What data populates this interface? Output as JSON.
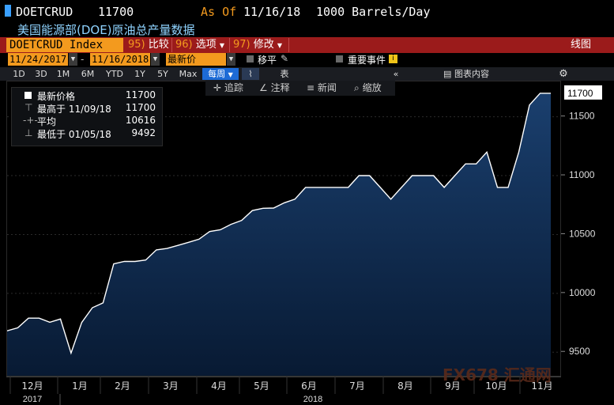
{
  "header": {
    "ticker": "DOETCRUD",
    "last_value": "11700",
    "as_of_label": "As Of",
    "as_of_date": "11/16/18",
    "units": "1000 Barrels/Day",
    "subtitle": "美国能源部(DOE)原油总产量数据"
  },
  "toolbar": {
    "security": "DOETCRUD Index",
    "compare_num": "95)",
    "compare": "比较",
    "options_num": "96)",
    "options": "选项",
    "modify_num": "97)",
    "modify": "修改",
    "chart_label": "线图"
  },
  "daterow": {
    "start": "11/24/2017",
    "end": "11/16/2018",
    "price_field": "最新价",
    "pan": "移平",
    "events": "重要事件"
  },
  "ranges": [
    "1D",
    "3D",
    "1M",
    "6M",
    "YTD",
    "1Y",
    "5Y",
    "Max"
  ],
  "frequency": "每周",
  "chart_type_button": "表",
  "chart_contents": "图表内容",
  "tools": {
    "track": "追踪",
    "annotate": "注释",
    "news": "新闻",
    "zoom": "缩放"
  },
  "legend": {
    "latest_label": "最新价格",
    "latest_value": "11700",
    "high_label": "最高于 11/09/18",
    "high_value": "11700",
    "avg_label": "平均",
    "avg_value": "10616",
    "low_label": "最低于 01/05/18",
    "low_value": "9492"
  },
  "watermark": "FX678 汇通网",
  "colors": {
    "accent_orange": "#f39a1e",
    "toolbar_red": "#9b1b1b",
    "area_fill": "#0d2a4e",
    "line": "#ffffff",
    "selected_blue": "#1d6bd6"
  },
  "chart_data": {
    "type": "area",
    "ylim": [
      9300,
      11800
    ],
    "yticks": [
      9500,
      10000,
      10500,
      11000,
      11500
    ],
    "last_label": "11700",
    "x_month_labels": [
      "12月",
      "1月",
      "2月",
      "3月",
      "4月",
      "5月",
      "6月",
      "7月",
      "8月",
      "9月",
      "10月",
      "11月"
    ],
    "x_year_labels": [
      "2017",
      "2018"
    ],
    "x": [
      "11/24/17",
      "12/01/17",
      "12/08/17",
      "12/15/17",
      "12/22/17",
      "12/29/17",
      "01/05/18",
      "01/12/18",
      "01/19/18",
      "01/26/18",
      "02/02/18",
      "02/09/18",
      "02/16/18",
      "02/23/18",
      "03/02/18",
      "03/09/18",
      "03/16/18",
      "03/23/18",
      "03/30/18",
      "04/06/18",
      "04/13/18",
      "04/20/18",
      "04/27/18",
      "05/04/18",
      "05/11/18",
      "05/18/18",
      "05/25/18",
      "06/01/18",
      "06/08/18",
      "06/15/18",
      "06/22/18",
      "06/29/18",
      "07/06/18",
      "07/13/18",
      "07/20/18",
      "07/27/18",
      "08/03/18",
      "08/10/18",
      "08/17/18",
      "08/24/18",
      "08/31/18",
      "09/07/18",
      "09/14/18",
      "09/21/18",
      "09/28/18",
      "10/05/18",
      "10/12/18",
      "10/19/18",
      "10/26/18",
      "11/02/18",
      "11/09/18",
      "11/16/18"
    ],
    "values": [
      9682,
      9707,
      9789,
      9789,
      9754,
      9782,
      9492,
      9752,
      9878,
      9919,
      10250,
      10271,
      10271,
      10283,
      10369,
      10381,
      10407,
      10433,
      10460,
      10525,
      10540,
      10586,
      10620,
      10703,
      10723,
      10725,
      10769,
      10800,
      10900,
      10900,
      10900,
      10900,
      10900,
      11000,
      11000,
      10900,
      10800,
      10900,
      11000,
      11000,
      11000,
      10900,
      11000,
      11100,
      11100,
      11200,
      10900,
      10900,
      11200,
      11600,
      11700,
      11700
    ]
  }
}
